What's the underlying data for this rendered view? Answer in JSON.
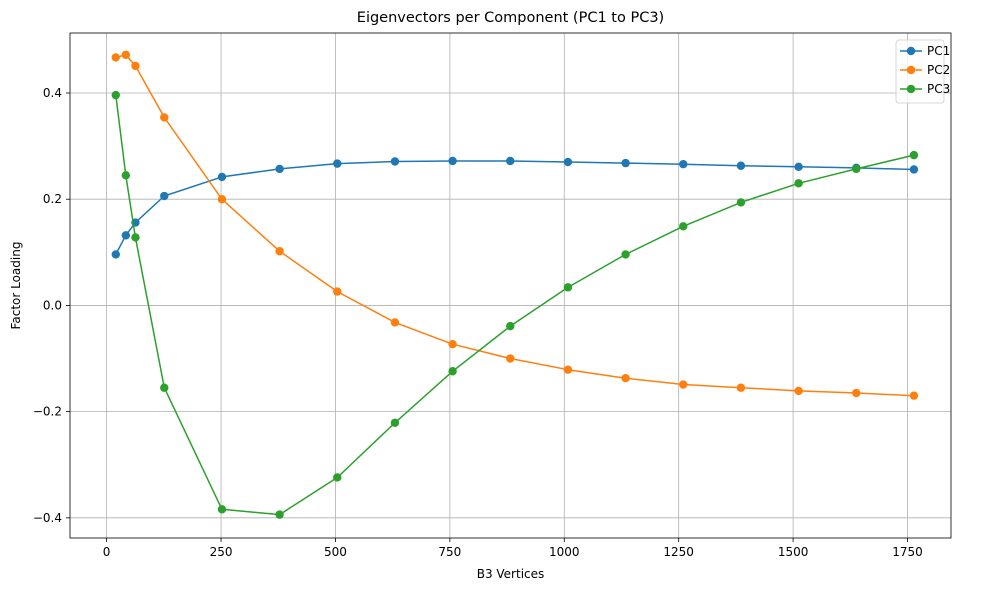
{
  "chart_data": {
    "type": "line",
    "title": "Eigenvectors per Component (PC1 to PC3)",
    "xlabel": "B3 Vertices",
    "ylabel": "Factor Loading",
    "xlim": [
      -80,
      1845
    ],
    "ylim": [
      -0.438,
      0.513
    ],
    "xticks": [
      0,
      250,
      500,
      750,
      1000,
      1250,
      1500,
      1750
    ],
    "yticks": [
      -0.4,
      -0.2,
      0.0,
      0.2,
      0.4
    ],
    "xtick_labels": [
      "0",
      "250",
      "500",
      "750",
      "1000",
      "1250",
      "1500",
      "1750"
    ],
    "ytick_labels": [
      "−0.4",
      "−0.2",
      "0.0",
      "0.2",
      "0.4"
    ],
    "grid": true,
    "legend_position": "top-right",
    "x": [
      20,
      42,
      63,
      126,
      252,
      378,
      504,
      630,
      756,
      882,
      1008,
      1134,
      1260,
      1386,
      1512,
      1638,
      1764
    ],
    "series": [
      {
        "name": "PC1",
        "color": "#1f77b4",
        "values": [
          0.096,
          0.132,
          0.156,
          0.206,
          0.242,
          0.257,
          0.267,
          0.271,
          0.272,
          0.272,
          0.27,
          0.268,
          0.266,
          0.263,
          0.261,
          0.259,
          0.256
        ]
      },
      {
        "name": "PC2",
        "color": "#ff7f0e",
        "values": [
          0.467,
          0.472,
          0.451,
          0.354,
          0.2,
          0.102,
          0.026,
          -0.032,
          -0.073,
          -0.1,
          -0.121,
          -0.137,
          -0.149,
          -0.155,
          -0.161,
          -0.165,
          -0.17
        ]
      },
      {
        "name": "PC3",
        "color": "#2ca02c",
        "values": [
          0.396,
          0.245,
          0.128,
          -0.155,
          -0.384,
          -0.394,
          -0.324,
          -0.221,
          -0.124,
          -0.039,
          0.034,
          0.096,
          0.149,
          0.194,
          0.23,
          0.257,
          0.283
        ]
      }
    ]
  }
}
